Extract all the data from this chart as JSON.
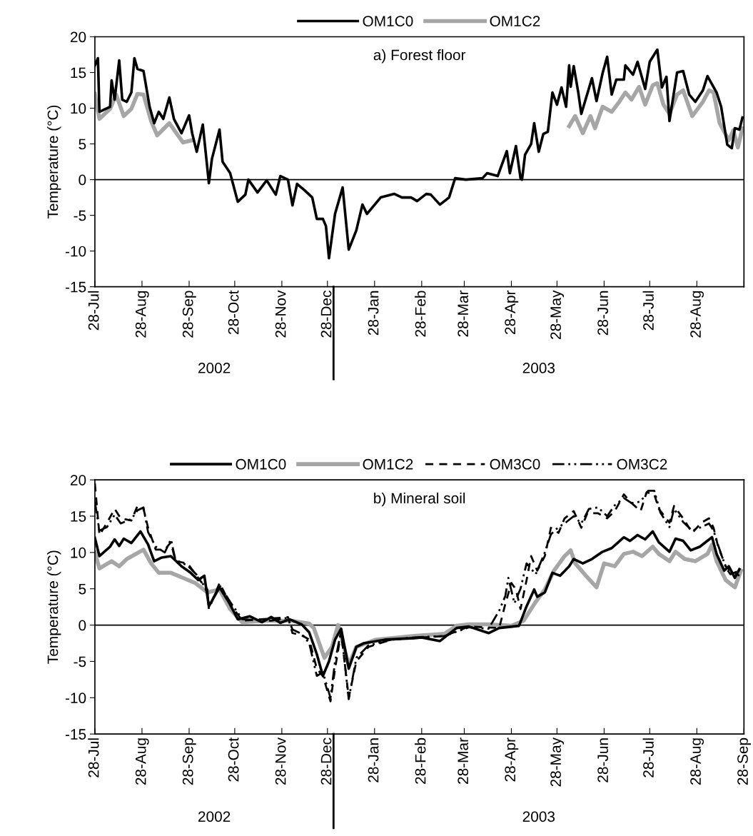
{
  "chart_data": [
    {
      "type": "line",
      "title": "a) Forest floor",
      "ylabel": "Temperature (°C)",
      "ylim": [
        -15,
        20
      ],
      "yticks": [
        -15,
        -10,
        -5,
        0,
        5,
        10,
        15,
        20
      ],
      "xlim": [
        "2002-07-28",
        "2003-09-28"
      ],
      "xticks": [
        {
          "value": "2002-07-28",
          "label": "28-Jul"
        },
        {
          "value": "2002-08-28",
          "label": "28-Aug"
        },
        {
          "value": "2002-09-28",
          "label": "28-Sep"
        },
        {
          "value": "2002-10-28",
          "label": "28-Oct"
        },
        {
          "value": "2002-11-28",
          "label": "28-Nov"
        },
        {
          "value": "2002-12-28",
          "label": "28-Dec"
        },
        {
          "value": "2003-01-28",
          "label": "28-Jan"
        },
        {
          "value": "2003-02-28",
          "label": "28-Feb"
        },
        {
          "value": "2003-03-28",
          "label": "28-Mar"
        },
        {
          "value": "2003-04-28",
          "label": "28-Apr"
        },
        {
          "value": "2003-05-28",
          "label": "28-May"
        },
        {
          "value": "2003-06-28",
          "label": "28-Jun"
        },
        {
          "value": "2003-07-28",
          "label": "28-Jul"
        },
        {
          "value": "2003-08-28",
          "label": "28-Aug"
        },
        {
          "value": "2003-09-28",
          "label": null
        }
      ],
      "annotations": [
        "2002",
        "2003"
      ],
      "legend": "top",
      "grid": false,
      "marker": "none",
      "ref_lines": [
        {
          "axis": "y",
          "value": 0,
          "color": "#000000",
          "line_style": "solid"
        }
      ],
      "series": [
        {
          "name": "OM1C0",
          "color": "#000000",
          "line_style": "solid",
          "x": [
            "2002-07-28",
            "2002-07-30",
            "2002-07-31",
            "2002-08-07",
            "2002-08-08",
            "2002-08-10",
            "2002-08-13",
            "2002-08-15",
            "2002-08-18",
            "2002-08-21",
            "2002-08-23",
            "2002-08-25",
            "2002-08-29",
            "2002-09-02",
            "2002-09-05",
            "2002-09-08",
            "2002-09-11",
            "2002-09-15",
            "2002-09-18",
            "2002-09-23",
            "2002-09-28",
            "2002-09-30",
            "2002-10-03",
            "2002-10-07",
            "2002-10-11",
            "2002-10-13",
            "2002-10-18",
            "2002-10-20",
            "2002-10-25",
            "2002-10-30",
            "2002-11-04",
            "2002-11-06",
            "2002-11-12",
            "2002-11-18",
            "2002-11-24",
            "2002-11-27",
            "2002-12-02",
            "2002-12-05",
            "2002-12-08",
            "2002-12-13",
            "2002-12-18",
            "2002-12-21",
            "2002-12-25",
            "2002-12-27",
            "2002-12-29",
            "2003-01-02",
            "2003-01-07",
            "2003-01-11",
            "2003-01-16",
            "2003-01-20",
            "2003-01-23",
            "2003-02-01",
            "2003-02-10",
            "2003-02-15",
            "2003-02-21",
            "2003-02-25",
            "2003-03-03",
            "2003-03-06",
            "2003-03-12",
            "2003-03-18",
            "2003-03-22",
            "2003-03-29",
            "2003-04-09",
            "2003-04-12",
            "2003-04-19",
            "2003-04-25",
            "2003-04-27",
            "2003-05-01",
            "2003-05-04",
            "2003-05-05",
            "2003-05-07",
            "2003-05-11",
            "2003-05-13",
            "2003-05-16",
            "2003-05-19",
            "2003-05-22",
            "2003-05-25",
            "2003-05-28",
            "2003-05-31",
            "2003-06-03",
            "2003-06-05",
            "2003-06-06",
            "2003-06-08",
            "2003-06-11",
            "2003-06-13",
            "2003-06-20",
            "2003-06-23",
            "2003-06-27",
            "2003-06-30",
            "2003-07-03",
            "2003-07-06",
            "2003-07-11",
            "2003-07-12",
            "2003-07-17",
            "2003-07-20",
            "2003-07-25",
            "2003-07-28",
            "2003-08-02",
            "2003-08-05",
            "2003-08-08",
            "2003-08-10",
            "2003-08-15",
            "2003-08-19",
            "2003-08-23",
            "2003-08-27",
            "2003-09-01",
            "2003-09-04",
            "2003-09-10",
            "2003-09-13",
            "2003-09-17",
            "2003-09-20",
            "2003-09-22",
            "2003-09-25",
            "2003-09-27"
          ],
          "values": [
            16.0,
            17.0,
            9.5,
            10.2,
            13.9,
            11.2,
            16.7,
            11.2,
            10.9,
            12.2,
            17.0,
            15.5,
            15.2,
            10.2,
            7.9,
            9.5,
            8.5,
            11.5,
            8.5,
            6.5,
            9.0,
            6.5,
            3.9,
            7.7,
            -0.5,
            2.9,
            7.0,
            2.5,
            0.9,
            -3.1,
            -2.1,
            0.0,
            -1.8,
            -0.1,
            -2.1,
            0.5,
            0.0,
            -3.6,
            -0.6,
            -1.5,
            -2.5,
            -5.5,
            -5.5,
            -6.5,
            -11.0,
            -4.8,
            -1.1,
            -9.8,
            -7.1,
            -3.5,
            -4.8,
            -2.5,
            -2.0,
            -2.5,
            -2.5,
            -3.0,
            -2.0,
            -2.1,
            -3.5,
            -2.5,
            0.2,
            0.0,
            0.2,
            0.9,
            0.5,
            4.0,
            0.9,
            4.7,
            0.2,
            0.0,
            3.5,
            5.0,
            7.9,
            3.9,
            6.4,
            6.7,
            12.2,
            10.5,
            12.9,
            10.2,
            16.0,
            13.0,
            15.9,
            12.2,
            9.2,
            14.2,
            11.0,
            14.9,
            17.2,
            11.9,
            14.0,
            14.0,
            16.0,
            14.7,
            16.5,
            12.7,
            16.5,
            18.2,
            12.9,
            14.4,
            8.2,
            15.0,
            15.2,
            11.9,
            10.9,
            12.5,
            14.5,
            12.2,
            10.2,
            4.9,
            4.4,
            7.2,
            7.0,
            8.7
          ]
        },
        {
          "name": "OM1C2",
          "color": "#a6a6a6",
          "line_style": "solid",
          "x": [
            "2002-07-28",
            "2002-07-31",
            "2002-08-07",
            "2002-08-11",
            "2002-08-16",
            "2002-08-21",
            "2002-08-25",
            "2002-08-29",
            "2002-09-03",
            "2002-09-07",
            "2002-09-15",
            "2002-09-24",
            "2002-09-30",
            "2002-10-15",
            "2003-06-05",
            "2003-06-09",
            "2003-06-14",
            "2003-06-19",
            "2003-06-22",
            "2003-06-27",
            "2003-07-03",
            "2003-07-08",
            "2003-07-12",
            "2003-07-16",
            "2003-07-21",
            "2003-07-25",
            "2003-07-30",
            "2003-08-02",
            "2003-08-06",
            "2003-08-10",
            "2003-08-15",
            "2003-08-19",
            "2003-08-25",
            "2003-09-01",
            "2003-09-05",
            "2003-09-08",
            "2003-09-12",
            "2003-09-18",
            "2003-09-21",
            "2003-09-24",
            "2003-09-27"
          ],
          "values": [
            12.0,
            8.5,
            9.9,
            11.9,
            8.9,
            9.9,
            12.0,
            11.9,
            8.2,
            6.2,
            7.9,
            5.2,
            5.5,
            null,
            7.5,
            8.9,
            6.5,
            8.9,
            7.2,
            10.2,
            9.5,
            10.9,
            12.2,
            11.2,
            13.0,
            10.5,
            13.2,
            13.5,
            10.5,
            9.2,
            11.9,
            12.5,
            8.9,
            10.9,
            12.5,
            12.2,
            7.9,
            5.5,
            6.9,
            4.5,
            7.2
          ]
        }
      ]
    },
    {
      "type": "line",
      "title": "b) Mineral soil",
      "ylabel": "Temperature (°C)",
      "ylim": [
        -15,
        20
      ],
      "yticks": [
        -15,
        -10,
        -5,
        0,
        5,
        10,
        15,
        20
      ],
      "xlim": [
        "2002-07-28",
        "2003-09-28"
      ],
      "xticks": [
        {
          "value": "2002-07-28",
          "label": "28-Jul"
        },
        {
          "value": "2002-08-28",
          "label": "28-Aug"
        },
        {
          "value": "2002-09-28",
          "label": "28-Sep"
        },
        {
          "value": "2002-10-28",
          "label": "28-Oct"
        },
        {
          "value": "2002-11-28",
          "label": "28-Nov"
        },
        {
          "value": "2002-12-28",
          "label": "28-Dec"
        },
        {
          "value": "2003-01-28",
          "label": "28-Jan"
        },
        {
          "value": "2003-02-28",
          "label": "28-Feb"
        },
        {
          "value": "2003-03-28",
          "label": "28-Mar"
        },
        {
          "value": "2003-04-28",
          "label": "28-Apr"
        },
        {
          "value": "2003-05-28",
          "label": "28-May"
        },
        {
          "value": "2003-06-28",
          "label": "28-Jun"
        },
        {
          "value": "2003-07-28",
          "label": "28-Jul"
        },
        {
          "value": "2003-08-28",
          "label": "28-Aug"
        },
        {
          "value": "2003-09-28",
          "label": "28-Sep"
        }
      ],
      "annotations": [
        "2002",
        "2003"
      ],
      "legend": "top",
      "grid": false,
      "marker": "none",
      "ref_lines": [
        {
          "axis": "y",
          "value": 0,
          "color": "#000000",
          "line_style": "solid"
        }
      ],
      "series": [
        {
          "name": "OM1C0",
          "color": "#000000",
          "line_style": "solid",
          "x": [
            "2002-07-28",
            "2002-07-31",
            "2002-08-07",
            "2002-08-10",
            "2002-08-13",
            "2002-08-16",
            "2002-08-21",
            "2002-08-27",
            "2002-09-01",
            "2002-09-05",
            "2002-09-10",
            "2002-09-16",
            "2002-09-23",
            "2002-09-29",
            "2002-10-04",
            "2002-10-08",
            "2002-10-11",
            "2002-10-18",
            "2002-10-24",
            "2002-10-30",
            "2002-11-07",
            "2002-11-15",
            "2002-11-21",
            "2002-11-27",
            "2002-12-03",
            "2002-12-11",
            "2002-12-16",
            "2002-12-21",
            "2002-12-25",
            "2002-12-29",
            "2003-01-02",
            "2003-01-06",
            "2003-01-11",
            "2003-01-16",
            "2003-01-21",
            "2003-02-04",
            "2003-02-23",
            "2003-02-28",
            "2003-03-12",
            "2003-03-23",
            "2003-03-31",
            "2003-04-13",
            "2003-04-20",
            "2003-05-03",
            "2003-05-08",
            "2003-05-13",
            "2003-05-15",
            "2003-05-20",
            "2003-05-25",
            "2003-05-30",
            "2003-06-05",
            "2003-06-08",
            "2003-06-14",
            "2003-06-20",
            "2003-06-27",
            "2003-07-03",
            "2003-07-11",
            "2003-07-15",
            "2003-07-20",
            "2003-07-25",
            "2003-07-30",
            "2003-08-03",
            "2003-08-10",
            "2003-08-14",
            "2003-08-19",
            "2003-08-24",
            "2003-08-30",
            "2003-09-07",
            "2003-09-10",
            "2003-09-15",
            "2003-09-18",
            "2003-09-22",
            "2003-09-25"
          ],
          "values": [
            12.0,
            9.5,
            10.8,
            11.8,
            10.9,
            11.9,
            11.3,
            12.9,
            11.1,
            8.8,
            9.3,
            9.5,
            8.1,
            7.2,
            6.2,
            6.8,
            2.6,
            5.2,
            3.2,
            0.8,
            1.2,
            0.4,
            1.1,
            0.3,
            0.8,
            0.1,
            -1.0,
            -4.0,
            -7.0,
            -5.0,
            -2.0,
            -0.5,
            -6.0,
            -3.0,
            -2.5,
            -2.0,
            -1.8,
            -1.7,
            -2.2,
            -0.4,
            -0.2,
            -1.1,
            -0.4,
            -0.1,
            2.6,
            4.9,
            3.9,
            4.5,
            7.2,
            6.8,
            8.1,
            9.1,
            8.5,
            9.1,
            10.1,
            10.6,
            12.1,
            11.6,
            12.4,
            11.8,
            12.9,
            11.4,
            10.1,
            11.9,
            11.6,
            10.3,
            10.8,
            12.1,
            9.8,
            7.5,
            8.1,
            6.5,
            7.7
          ]
        },
        {
          "name": "OM1C2",
          "color": "#a6a6a6",
          "line_style": "solid",
          "x": [
            "2002-07-28",
            "2002-07-31",
            "2002-08-08",
            "2002-08-13",
            "2002-08-18",
            "2002-08-24",
            "2002-08-29",
            "2002-09-03",
            "2002-09-08",
            "2002-09-16",
            "2002-09-24",
            "2002-10-02",
            "2002-10-10",
            "2002-10-18",
            "2002-10-25",
            "2002-11-02",
            "2002-11-18",
            "2002-12-04",
            "2002-12-16",
            "2002-12-19",
            "2002-12-26",
            "2002-12-31",
            "2003-01-04",
            "2003-01-11",
            "2003-01-16",
            "2003-01-29",
            "2003-02-23",
            "2003-03-15",
            "2003-03-23",
            "2003-03-31",
            "2003-04-13",
            "2003-04-28",
            "2003-05-06",
            "2003-05-14",
            "2003-05-20",
            "2003-05-26",
            "2003-06-02",
            "2003-06-06",
            "2003-06-09",
            "2003-06-16",
            "2003-06-23",
            "2003-06-28",
            "2003-07-05",
            "2003-07-11",
            "2003-07-17",
            "2003-07-23",
            "2003-07-30",
            "2003-08-03",
            "2003-08-10",
            "2003-08-14",
            "2003-08-20",
            "2003-08-27",
            "2003-09-04",
            "2003-09-07",
            "2003-09-10",
            "2003-09-16",
            "2003-09-22",
            "2003-09-26"
          ],
          "values": [
            10.0,
            7.8,
            8.8,
            8.1,
            9.1,
            9.8,
            10.4,
            8.5,
            7.2,
            7.2,
            6.5,
            5.8,
            4.5,
            4.9,
            2.2,
            0.4,
            0.6,
            0.6,
            0.2,
            -0.4,
            -4.5,
            -3.0,
            0.0,
            -5.5,
            -3.0,
            -2.0,
            -1.5,
            -1.2,
            -0.1,
            0.1,
            0.1,
            -0.1,
            0.6,
            3.2,
            4.9,
            7.5,
            9.5,
            10.3,
            8.5,
            6.8,
            5.2,
            8.5,
            8.1,
            9.8,
            10.1,
            9.5,
            10.8,
            9.8,
            8.8,
            10.1,
            9.1,
            8.8,
            9.8,
            11.1,
            8.8,
            6.2,
            5.2,
            7.5
          ]
        },
        {
          "name": "OM3C0",
          "color": "#000000",
          "line_style": "dashed",
          "x": [
            "2002-07-28",
            "2002-07-31",
            "2002-08-05",
            "2002-08-10",
            "2002-08-14",
            "2002-08-21",
            "2002-08-25",
            "2002-08-29",
            "2002-09-01",
            "2002-09-06",
            "2002-09-12",
            "2002-09-16",
            "2002-09-19",
            "2002-09-27",
            "2002-10-05",
            "2002-10-10",
            "2002-10-11",
            "2002-10-18",
            "2002-10-25",
            "2002-11-02",
            "2002-11-21",
            "2002-12-02",
            "2002-12-05",
            "2002-12-11",
            "2002-12-16",
            "2002-12-21",
            "2002-12-25",
            "2002-12-30",
            "2003-01-02",
            "2003-01-06",
            "2003-01-11",
            "2003-01-16",
            "2003-01-24",
            "2003-02-08",
            "2003-02-23",
            "2003-03-15",
            "2003-03-31",
            "2003-04-20",
            "2003-04-24",
            "2003-04-28",
            "2003-05-01",
            "2003-05-04",
            "2003-05-08",
            "2003-05-11",
            "2003-05-15",
            "2003-05-20",
            "2003-05-24",
            "2003-05-29",
            "2003-06-02",
            "2003-06-08",
            "2003-06-13",
            "2003-06-17",
            "2003-06-24",
            "2003-06-30",
            "2003-07-05",
            "2003-07-11",
            "2003-07-15",
            "2003-07-22",
            "2003-07-26",
            "2003-07-31",
            "2003-08-03",
            "2003-08-10",
            "2003-08-13",
            "2003-08-19",
            "2003-08-25",
            "2003-08-31",
            "2003-09-05",
            "2003-09-08",
            "2003-09-11",
            "2003-09-16",
            "2003-09-19",
            "2003-09-25"
          ],
          "values": [
            19.5,
            12.4,
            14.1,
            16.0,
            14.7,
            14.4,
            16.4,
            16.0,
            13.4,
            10.4,
            10.4,
            11.4,
            8.8,
            8.5,
            6.2,
            4.9,
            2.2,
            5.8,
            2.9,
            0.6,
            0.9,
            1.1,
            -1.1,
            -1.4,
            -2.0,
            -6.0,
            -7.0,
            -10.5,
            -6.0,
            -1.0,
            -10.0,
            -5.0,
            -3.0,
            -2.0,
            -1.8,
            -1.5,
            -0.2,
            -0.4,
            2.9,
            5.8,
            4.9,
            2.2,
            6.2,
            9.5,
            7.5,
            9.5,
            13.4,
            12.7,
            14.7,
            15.7,
            13.4,
            15.4,
            15.4,
            14.7,
            15.7,
            18.0,
            17.0,
            15.7,
            18.3,
            18.0,
            16.0,
            14.1,
            16.4,
            14.7,
            12.7,
            14.1,
            14.7,
            13.4,
            10.8,
            8.1,
            7.5,
            6.8
          ]
        },
        {
          "name": "OM3C2",
          "color": "#000000",
          "line_style": "dashdot",
          "x": [
            "2002-07-28",
            "2002-07-31",
            "2002-08-05",
            "2002-08-10",
            "2002-08-14",
            "2002-08-21",
            "2002-08-25",
            "2002-08-29",
            "2002-09-01",
            "2002-09-06",
            "2002-09-12",
            "2002-09-16",
            "2002-09-19",
            "2002-09-27",
            "2002-10-05",
            "2002-10-10",
            "2002-10-11",
            "2002-10-18",
            "2002-10-25",
            "2002-11-02",
            "2002-11-21",
            "2002-12-02",
            "2002-12-05",
            "2002-12-11",
            "2002-12-16",
            "2002-12-21",
            "2002-12-25",
            "2002-12-30",
            "2003-01-02",
            "2003-01-06",
            "2003-01-11",
            "2003-01-16",
            "2003-01-24",
            "2003-02-08",
            "2003-02-23",
            "2003-03-15",
            "2003-03-31",
            "2003-04-13",
            "2003-04-20",
            "2003-04-24",
            "2003-04-26",
            "2003-04-30",
            "2003-05-04",
            "2003-05-08",
            "2003-05-14",
            "2003-05-20",
            "2003-05-24",
            "2003-05-29",
            "2003-06-02",
            "2003-06-08",
            "2003-06-13",
            "2003-06-18",
            "2003-06-24",
            "2003-06-30",
            "2003-07-05",
            "2003-07-11",
            "2003-07-16",
            "2003-07-22",
            "2003-07-27",
            "2003-07-31",
            "2003-08-04",
            "2003-08-10",
            "2003-08-13",
            "2003-08-19",
            "2003-08-25",
            "2003-08-31",
            "2003-09-05",
            "2003-09-08",
            "2003-09-11",
            "2003-09-16",
            "2003-09-19",
            "2003-09-25"
          ],
          "values": [
            17.0,
            13.0,
            13.5,
            15.2,
            14.0,
            14.6,
            15.8,
            16.2,
            12.8,
            10.8,
            10.0,
            11.8,
            9.0,
            8.2,
            6.5,
            4.5,
            2.5,
            5.5,
            3.2,
            0.8,
            0.6,
            1.0,
            -0.6,
            -1.2,
            -2.5,
            -7.0,
            -6.5,
            -10.0,
            -5.0,
            -0.8,
            -10.2,
            -4.5,
            -2.8,
            -2.0,
            -1.7,
            -1.5,
            -0.3,
            -0.5,
            2.0,
            4.0,
            6.5,
            3.0,
            5.0,
            8.5,
            7.0,
            10.0,
            12.5,
            13.5,
            14.0,
            15.0,
            14.0,
            16.0,
            16.2,
            15.0,
            16.5,
            17.5,
            16.8,
            17.0,
            18.5,
            18.5,
            15.5,
            13.5,
            16.0,
            14.2,
            13.0,
            13.5,
            14.0,
            13.0,
            11.0,
            8.0,
            7.0,
            7.5
          ]
        }
      ]
    }
  ]
}
